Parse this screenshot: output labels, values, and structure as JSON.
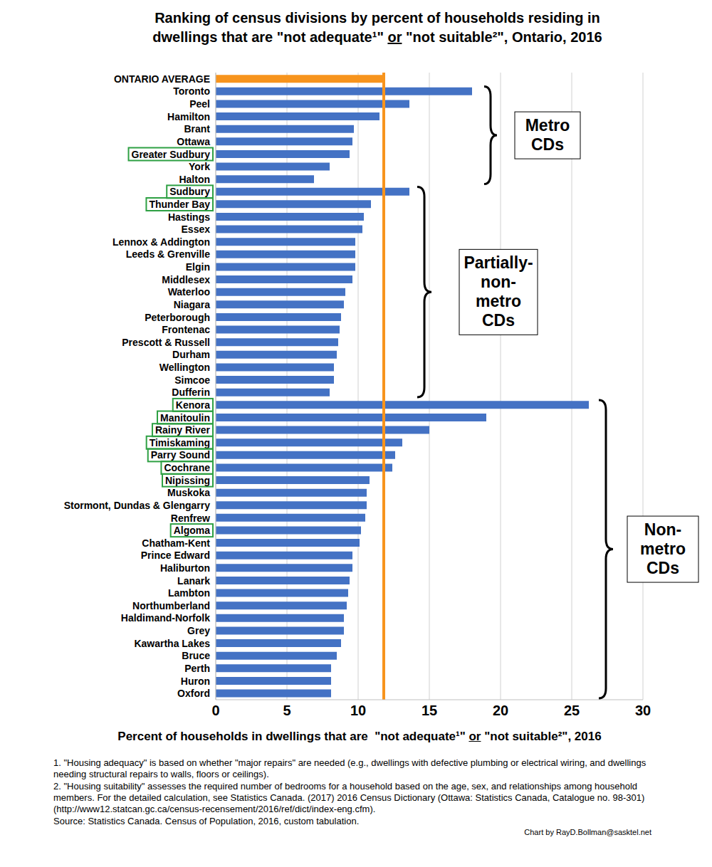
{
  "chart_data": {
    "type": "bar",
    "orientation": "horizontal",
    "title": "Ranking of census divisions by percent of households residing in\ndwellings that are \"not adequate¹\" or \"not suitable²\", Ontario, 2016",
    "x_label": "Percent of households in dwellings that are  \"not adequate¹\" or \"not suitable²\", 2016",
    "categories": [
      "ONTARIO AVERAGE",
      "Toronto",
      "Peel",
      "Hamilton",
      "Brant",
      "Ottawa",
      "Greater Sudbury",
      "York",
      "Halton",
      "Sudbury",
      "Thunder Bay",
      "Hastings",
      "Essex",
      "Lennox & Addington",
      "Leeds & Grenville",
      "Elgin",
      "Middlesex",
      "Waterloo",
      "Niagara",
      "Peterborough",
      "Frontenac",
      "Prescott & Russell",
      "Durham",
      "Wellington",
      "Simcoe",
      "Dufferin",
      "Kenora",
      "Manitoulin",
      "Rainy River",
      "Timiskaming",
      "Parry Sound",
      "Cochrane",
      "Nipissing",
      "Muskoka",
      "Stormont, Dundas & Glengarry",
      "Renfrew",
      "Algoma",
      "Chatham-Kent",
      "Prince Edward",
      "Haliburton",
      "Lanark",
      "Lambton",
      "Northumberland",
      "Haldimand-Norfolk",
      "Grey",
      "Kawartha Lakes",
      "Bruce",
      "Perth",
      "Huron",
      "Oxford"
    ],
    "values": [
      11.8,
      18.0,
      13.6,
      11.5,
      9.7,
      9.6,
      9.4,
      8.0,
      6.9,
      13.6,
      10.9,
      10.4,
      10.3,
      9.8,
      9.8,
      9.8,
      9.6,
      9.1,
      9.0,
      8.8,
      8.7,
      8.6,
      8.5,
      8.3,
      8.3,
      8.0,
      26.2,
      19.0,
      15.0,
      13.1,
      12.6,
      12.4,
      10.8,
      10.6,
      10.6,
      10.5,
      10.2,
      10.1,
      9.6,
      9.6,
      9.4,
      9.3,
      9.2,
      9.0,
      9.0,
      8.8,
      8.5,
      8.1,
      8.1,
      8.1
    ],
    "colors": [
      "#f7941d",
      "#4472c4",
      "#4472c4",
      "#4472c4",
      "#4472c4",
      "#4472c4",
      "#4472c4",
      "#4472c4",
      "#4472c4",
      "#4472c4",
      "#4472c4",
      "#4472c4",
      "#4472c4",
      "#4472c4",
      "#4472c4",
      "#4472c4",
      "#4472c4",
      "#4472c4",
      "#4472c4",
      "#4472c4",
      "#4472c4",
      "#4472c4",
      "#4472c4",
      "#4472c4",
      "#4472c4",
      "#4472c4",
      "#4472c4",
      "#4472c4",
      "#4472c4",
      "#4472c4",
      "#4472c4",
      "#4472c4",
      "#4472c4",
      "#4472c4",
      "#4472c4",
      "#4472c4",
      "#4472c4",
      "#4472c4",
      "#4472c4",
      "#4472c4",
      "#4472c4",
      "#4472c4",
      "#4472c4",
      "#4472c4",
      "#4472c4",
      "#4472c4",
      "#4472c4",
      "#4472c4",
      "#4472c4",
      "#4472c4"
    ],
    "xlim": [
      0,
      30
    ],
    "xticks": [
      0,
      5,
      10,
      15,
      20,
      25,
      30
    ],
    "grid": true,
    "highlighted": [
      "Greater Sudbury",
      "Sudbury",
      "Thunder Bay",
      "Kenora",
      "Manitoulin",
      "Rainy River",
      "Timiskaming",
      "Parry Sound",
      "Cochrane",
      "Nipissing",
      "Algoma"
    ],
    "groups": [
      {
        "label": "Metro\nCDs",
        "first": "Toronto",
        "last": "Halton"
      },
      {
        "label": "Partially-\nnon-\nmetro\nCDs",
        "first": "Sudbury",
        "last": "Dufferin"
      },
      {
        "label": "Non-\nmetro\nCDs",
        "first": "Kenora",
        "last": "Oxford"
      }
    ],
    "notes": [
      "1. \"Housing adequacy\" is based on whether \"major repairs\" are needed (e.g., dwellings with defective plumbing or electrical wiring, and dwellings needing structural repairs to walls, floors or ceilings).",
      "2. \"Housing suitability\" assesses the required number of bedrooms for a household based on the age, sex, and relationships among household members. For the detailed calculation, see Statistics Canada. (2017) 2016 Census Dictionary (Ottawa: Statistics Canada, Catalogue no. 98-301) (http://www12.statcan.gc.ca/census-recensement/2016/ref/dict/index-eng.cfm).",
      "Source: Statistics Canada. Census of Population, 2016, custom tabulation."
    ],
    "credit": "Chart by RayD.Bollman@sasktel.net"
  }
}
